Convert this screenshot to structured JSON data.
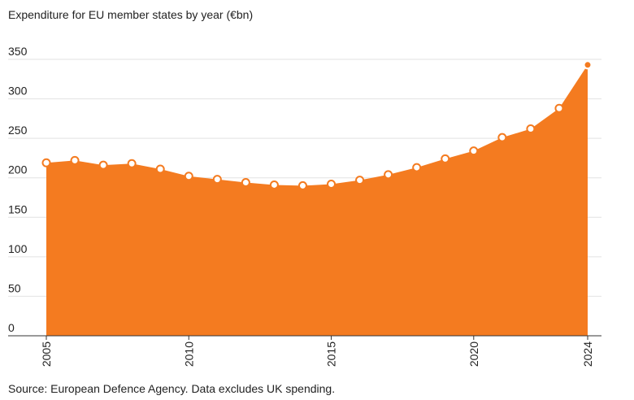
{
  "chart_data": {
    "type": "area",
    "title": "Expenditure for EU member states by year (€bn)",
    "source": "Source: European Defence Agency. Data excludes UK spending.",
    "x": [
      2005,
      2006,
      2007,
      2008,
      2009,
      2010,
      2011,
      2012,
      2013,
      2014,
      2015,
      2016,
      2017,
      2018,
      2019,
      2020,
      2021,
      2022,
      2023,
      2024
    ],
    "values": [
      219,
      222,
      216,
      218,
      211,
      202,
      198,
      194,
      191,
      190,
      192,
      197,
      204,
      213,
      224,
      234,
      251,
      262,
      288,
      343
    ],
    "ylim": [
      0,
      350
    ],
    "yticks": [
      0,
      50,
      100,
      150,
      200,
      250,
      300,
      350
    ],
    "xticks": [
      2005,
      2010,
      2015,
      2020,
      2024
    ],
    "color": "#f47b20",
    "xlabel": "",
    "ylabel": "",
    "grid": true
  }
}
